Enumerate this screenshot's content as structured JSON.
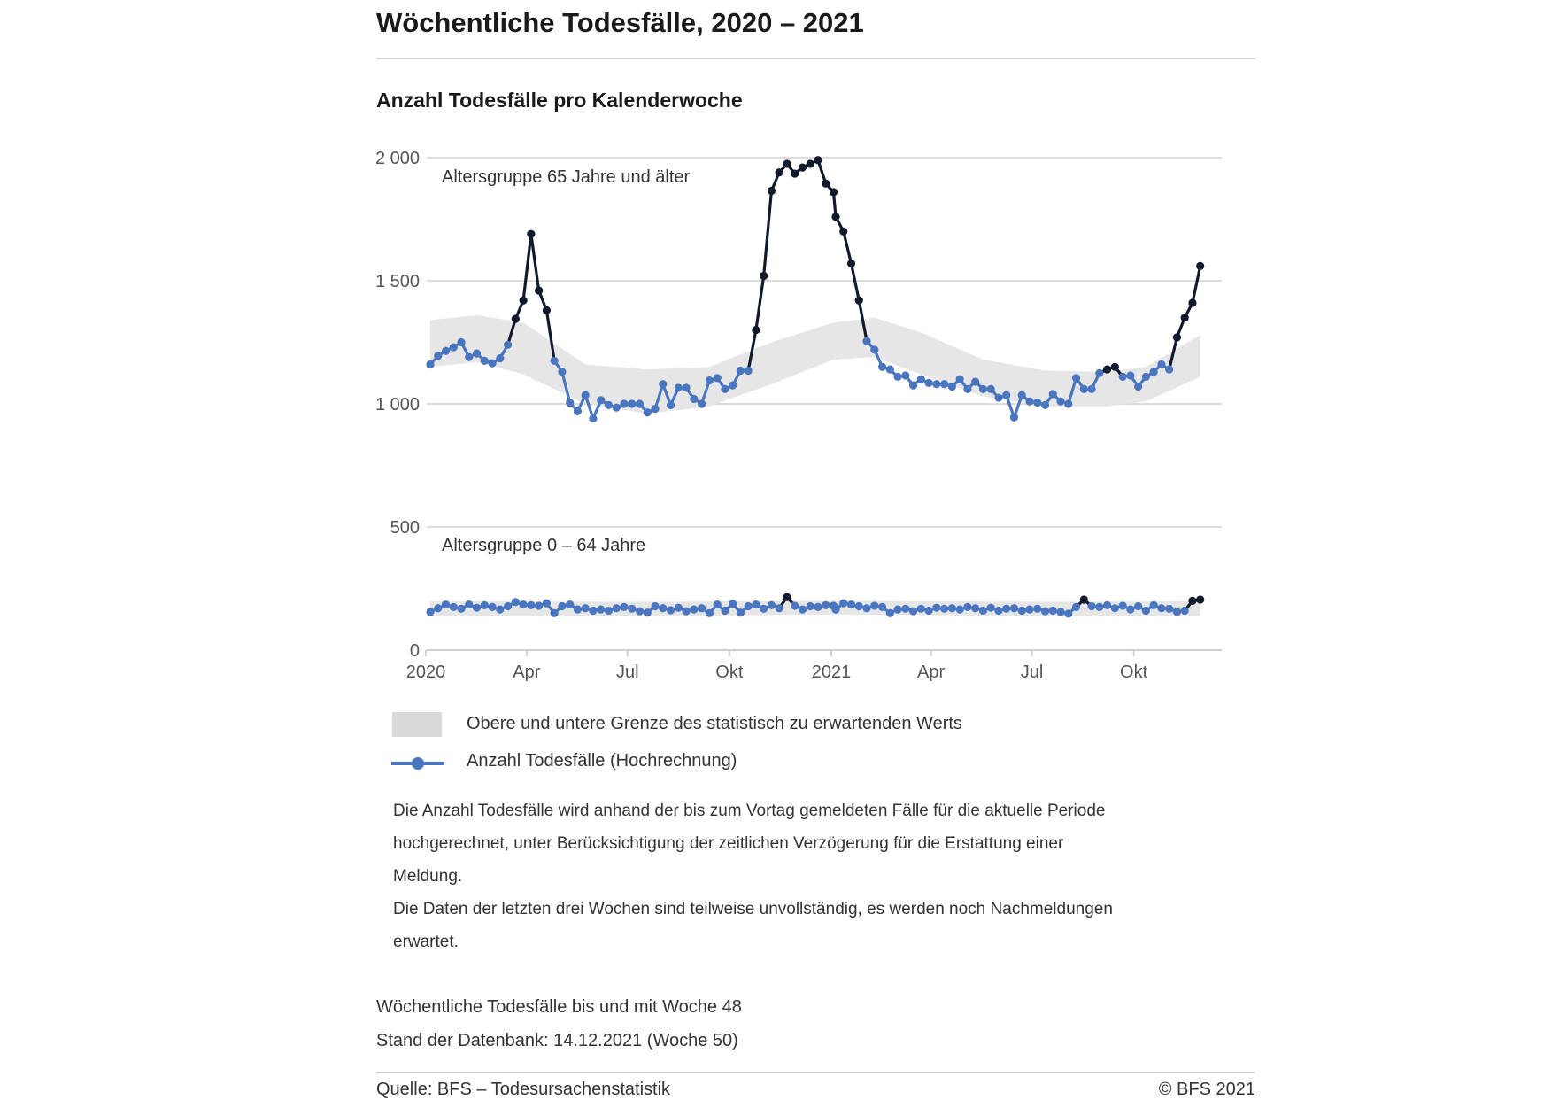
{
  "header": {
    "title": "Wöchentliche Todesfälle, 2020 – 2021",
    "subtitle": "Anzahl Todesfälle pro Kalenderwoche"
  },
  "chart_data": {
    "type": "line",
    "title": "Anzahl Todesfälle pro Kalenderwoche",
    "x_unit": "calendar week",
    "ylim": [
      0,
      2000
    ],
    "y_ticks": [
      0,
      500,
      1000,
      1500,
      2000
    ],
    "y_tick_labels": [
      "0",
      "500",
      "1 000",
      "1 500",
      "2 000"
    ],
    "x_ticks": [
      {
        "date": "2020-01-01",
        "label": "2020"
      },
      {
        "date": "2020-04-01",
        "label": "Apr"
      },
      {
        "date": "2020-07-01",
        "label": "Jul"
      },
      {
        "date": "2020-10-01",
        "label": "Okt"
      },
      {
        "date": "2021-01-01",
        "label": "2021"
      },
      {
        "date": "2021-04-01",
        "label": "Apr"
      },
      {
        "date": "2021-07-01",
        "label": "Jul"
      },
      {
        "date": "2021-10-01",
        "label": "Okt"
      }
    ],
    "grid": true,
    "colors": {
      "normal": "#4a76c0",
      "exceeding": "#111a2c",
      "band": "#e6e6e6",
      "grid": "#dddddd"
    },
    "panels": [
      {
        "label": "Altersgruppe 65 Jahre und älter",
        "series": {
          "2020": [
            1160,
            1195,
            1215,
            1230,
            1250,
            1190,
            1205,
            1175,
            1165,
            1185,
            1240,
            1345,
            1420,
            1690,
            1460,
            1380,
            1175,
            1130,
            1005,
            970,
            1035,
            940,
            1015,
            995,
            985,
            1000,
            1000,
            1000,
            965,
            980,
            1080,
            995,
            1065,
            1065,
            1020,
            1000,
            1095,
            1105,
            1060,
            1075,
            1135,
            1135,
            1300,
            1520,
            1865,
            1940,
            1975,
            1935,
            1960,
            1975,
            1990,
            1895,
            1860
          ],
          "2021": [
            1760,
            1700,
            1570,
            1420,
            1255,
            1220,
            1150,
            1140,
            1110,
            1115,
            1075,
            1100,
            1085,
            1080,
            1080,
            1070,
            1100,
            1060,
            1090,
            1060,
            1060,
            1025,
            1035,
            945,
            1035,
            1010,
            1005,
            995,
            1040,
            1010,
            1000,
            1105,
            1060,
            1060,
            1125,
            1140,
            1150,
            1110,
            1115,
            1070,
            1110,
            1130,
            1160,
            1140,
            1270,
            1350,
            1410,
            1560
          ]
        },
        "band": [
          {
            "year": 2020,
            "week": 1,
            "lower": 1150,
            "upper": 1340
          },
          {
            "year": 2020,
            "week": 7,
            "lower": 1170,
            "upper": 1360
          },
          {
            "year": 2020,
            "week": 13,
            "lower": 1120,
            "upper": 1330
          },
          {
            "year": 2020,
            "week": 21,
            "lower": 1000,
            "upper": 1160
          },
          {
            "year": 2020,
            "week": 29,
            "lower": 960,
            "upper": 1140
          },
          {
            "year": 2020,
            "week": 37,
            "lower": 990,
            "upper": 1150
          },
          {
            "year": 2020,
            "week": 45,
            "lower": 1080,
            "upper": 1250
          },
          {
            "year": 2020,
            "week": 53,
            "lower": 1180,
            "upper": 1330
          },
          {
            "year": 2021,
            "week": 6,
            "lower": 1190,
            "upper": 1350
          },
          {
            "year": 2021,
            "week": 12,
            "lower": 1120,
            "upper": 1290
          },
          {
            "year": 2021,
            "week": 20,
            "lower": 1030,
            "upper": 1180
          },
          {
            "year": 2021,
            "week": 28,
            "lower": 990,
            "upper": 1135
          },
          {
            "year": 2021,
            "week": 36,
            "lower": 990,
            "upper": 1130
          },
          {
            "year": 2021,
            "week": 41,
            "lower": 1010,
            "upper": 1150
          },
          {
            "year": 2021,
            "week": 48,
            "lower": 1110,
            "upper": 1280
          }
        ]
      },
      {
        "label": "Altersgruppe 0 – 64 Jahre",
        "series": {
          "2020": [
            155,
            170,
            185,
            175,
            168,
            185,
            172,
            182,
            175,
            165,
            178,
            195,
            185,
            182,
            180,
            190,
            150,
            178,
            185,
            165,
            170,
            160,
            165,
            160,
            170,
            175,
            168,
            158,
            152,
            178,
            170,
            162,
            172,
            158,
            165,
            170,
            150,
            185,
            160,
            188,
            152,
            178,
            185,
            168,
            182,
            170,
            215,
            180,
            165,
            178,
            175,
            182,
            180
          ],
          "2021": [
            165,
            190,
            185,
            178,
            170,
            180,
            175,
            150,
            165,
            168,
            158,
            168,
            160,
            172,
            168,
            170,
            165,
            175,
            170,
            160,
            172,
            160,
            168,
            170,
            160,
            165,
            168,
            158,
            160,
            155,
            148,
            175,
            205,
            178,
            175,
            182,
            170,
            180,
            165,
            178,
            160,
            182,
            170,
            168,
            155,
            160,
            200,
            205
          ]
        },
        "band": [
          {
            "year": 2020,
            "week": 1,
            "lower": 140,
            "upper": 198
          },
          {
            "year": 2020,
            "week": 30,
            "lower": 138,
            "upper": 196
          },
          {
            "year": 2021,
            "week": 1,
            "lower": 145,
            "upper": 200
          },
          {
            "year": 2021,
            "week": 30,
            "lower": 138,
            "upper": 196
          },
          {
            "year": 2021,
            "week": 48,
            "lower": 140,
            "upper": 198
          }
        ]
      }
    ],
    "legend": [
      {
        "type": "band",
        "label": "Obere und untere Grenze des statistisch zu erwartenden Werts"
      },
      {
        "type": "line",
        "label": "Anzahl Todesfälle (Hochrechnung)"
      }
    ],
    "legend_placement": "bottom"
  },
  "notes": [
    "Die Anzahl Todesfälle wird anhand der bis zum Vortag gemeldeten Fälle für die aktuelle Periode",
    "hochgerechnet, unter Berücksichtigung der zeitlichen Verzögerung für die Erstattung einer",
    "Meldung.",
    "Die Daten der letzten drei Wochen sind teilweise unvollständig, es werden noch Nachmeldungen",
    "erwartet."
  ],
  "footer": {
    "line1": "Wöchentliche Todesfälle bis und mit Woche 48",
    "line2": "Stand der Datenbank: 14.12.2021 (Woche 50)",
    "source": "Quelle: BFS – Todesursachenstatistik",
    "copyright": "© BFS 2021"
  }
}
